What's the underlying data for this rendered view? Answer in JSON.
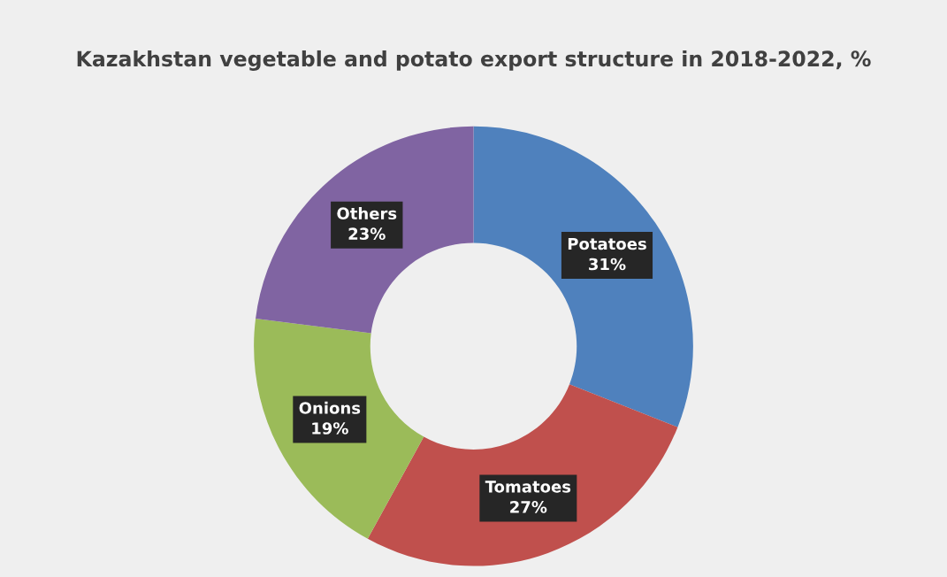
{
  "chart_data": {
    "type": "donut",
    "title": "Kazakhstan vegetable and potato export structure in 2018-2022, %",
    "categories": [
      "Potatoes",
      "Tomatoes",
      "Onions",
      "Others"
    ],
    "values": [
      31,
      27,
      19,
      23
    ],
    "value_labels": [
      "31%",
      "27%",
      "19%",
      "23%"
    ],
    "colors": [
      "#4f81bd",
      "#c0504d",
      "#9bbb59",
      "#8064a2"
    ],
    "legend": false
  }
}
